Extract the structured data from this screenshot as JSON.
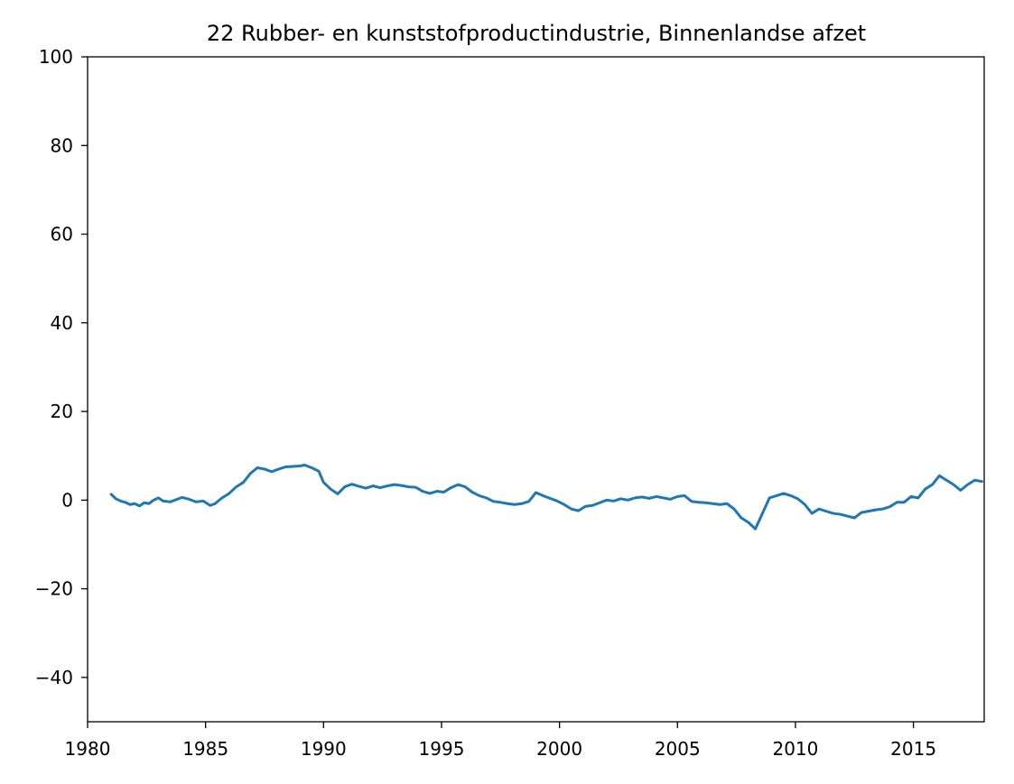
{
  "chart_data": {
    "type": "line",
    "title": "22 Rubber- en kunststofproductindustrie, Binnenlandse afzet",
    "xlabel": "",
    "ylabel": "",
    "xlim": [
      1980,
      2018
    ],
    "ylim": [
      -50,
      100
    ],
    "grid": false,
    "x_ticks": [
      1980,
      1985,
      1990,
      1995,
      2000,
      2005,
      2010,
      2015
    ],
    "x_tick_labels": [
      "1980",
      "1985",
      "1990",
      "1995",
      "2000",
      "2005",
      "2010",
      "2015"
    ],
    "y_ticks": [
      -40,
      -20,
      0,
      20,
      40,
      60,
      80,
      100
    ],
    "y_tick_labels": [
      "−40",
      "−20",
      "0",
      "20",
      "40",
      "60",
      "80",
      "100"
    ],
    "series": [
      {
        "color": "#1f77b4",
        "x": [
          1981.0,
          1981.2,
          1981.4,
          1981.6,
          1981.8,
          1982.0,
          1982.2,
          1982.4,
          1982.6,
          1982.8,
          1983.0,
          1983.2,
          1983.5,
          1983.8,
          1984.0,
          1984.3,
          1984.6,
          1984.9,
          1985.2,
          1985.4,
          1985.7,
          1986.0,
          1986.3,
          1986.6,
          1986.9,
          1987.2,
          1987.5,
          1987.8,
          1988.1,
          1988.4,
          1988.7,
          1989.0,
          1989.2,
          1989.5,
          1989.8,
          1990.0,
          1990.3,
          1990.6,
          1990.9,
          1991.2,
          1991.5,
          1991.8,
          1992.1,
          1992.4,
          1992.7,
          1993.0,
          1993.3,
          1993.6,
          1993.9,
          1994.2,
          1994.5,
          1994.8,
          1995.1,
          1995.4,
          1995.7,
          1996.0,
          1996.3,
          1996.6,
          1996.9,
          1997.2,
          1997.5,
          1997.8,
          1998.1,
          1998.4,
          1998.7,
          1999.0,
          1999.3,
          1999.6,
          1999.9,
          2000.2,
          2000.5,
          2000.8,
          2001.1,
          2001.4,
          2001.7,
          2002.0,
          2002.3,
          2002.6,
          2002.9,
          2003.2,
          2003.5,
          2003.8,
          2004.1,
          2004.4,
          2004.7,
          2005.0,
          2005.3,
          2005.6,
          2005.9,
          2006.2,
          2006.5,
          2006.8,
          2007.1,
          2007.4,
          2007.7,
          2008.0,
          2008.3,
          2008.6,
          2008.9,
          2009.2,
          2009.5,
          2009.8,
          2010.1,
          2010.4,
          2010.7,
          2011.0,
          2011.3,
          2011.6,
          2011.9,
          2012.2,
          2012.5,
          2012.8,
          2013.1,
          2013.4,
          2013.7,
          2014.0,
          2014.3,
          2014.6,
          2014.9,
          2015.2,
          2015.5,
          2015.8,
          2016.1,
          2016.4,
          2016.7,
          2017.0,
          2017.3,
          2017.6,
          2017.9
        ],
        "values": [
          1.3,
          0.3,
          -0.2,
          -0.5,
          -1.0,
          -0.8,
          -1.3,
          -0.6,
          -0.8,
          0.0,
          0.5,
          -0.2,
          -0.4,
          0.2,
          0.6,
          0.2,
          -0.4,
          -0.2,
          -1.2,
          -0.8,
          0.5,
          1.5,
          3.0,
          4.0,
          6.0,
          7.3,
          7.0,
          6.4,
          7.0,
          7.5,
          7.6,
          7.7,
          7.9,
          7.3,
          6.5,
          4.0,
          2.5,
          1.4,
          3.0,
          3.6,
          3.1,
          2.7,
          3.2,
          2.8,
          3.2,
          3.5,
          3.3,
          3.0,
          2.9,
          2.0,
          1.5,
          2.0,
          1.8,
          2.8,
          3.5,
          3.0,
          1.8,
          1.0,
          0.5,
          -0.3,
          -0.5,
          -0.8,
          -1.0,
          -0.8,
          -0.3,
          1.7,
          1.0,
          0.4,
          -0.2,
          -1.0,
          -2.0,
          -2.4,
          -1.4,
          -1.2,
          -0.6,
          0.0,
          -0.2,
          0.3,
          0.0,
          0.5,
          0.7,
          0.4,
          0.8,
          0.5,
          0.2,
          0.8,
          1.0,
          -0.3,
          -0.5,
          -0.6,
          -0.8,
          -1.0,
          -0.8,
          -2.0,
          -4.0,
          -5.0,
          -6.5,
          -3.0,
          0.5,
          1.0,
          1.5,
          1.0,
          0.3,
          -1.0,
          -3.0,
          -2.0,
          -2.5,
          -3.0,
          -3.2,
          -3.6,
          -4.0,
          -2.8,
          -2.5,
          -2.2,
          -2.0,
          -1.5,
          -0.5,
          -0.5,
          0.8,
          0.5,
          2.5,
          3.5,
          5.5,
          4.5,
          3.5,
          2.2,
          3.5,
          4.5,
          4.2
        ]
      }
    ]
  }
}
